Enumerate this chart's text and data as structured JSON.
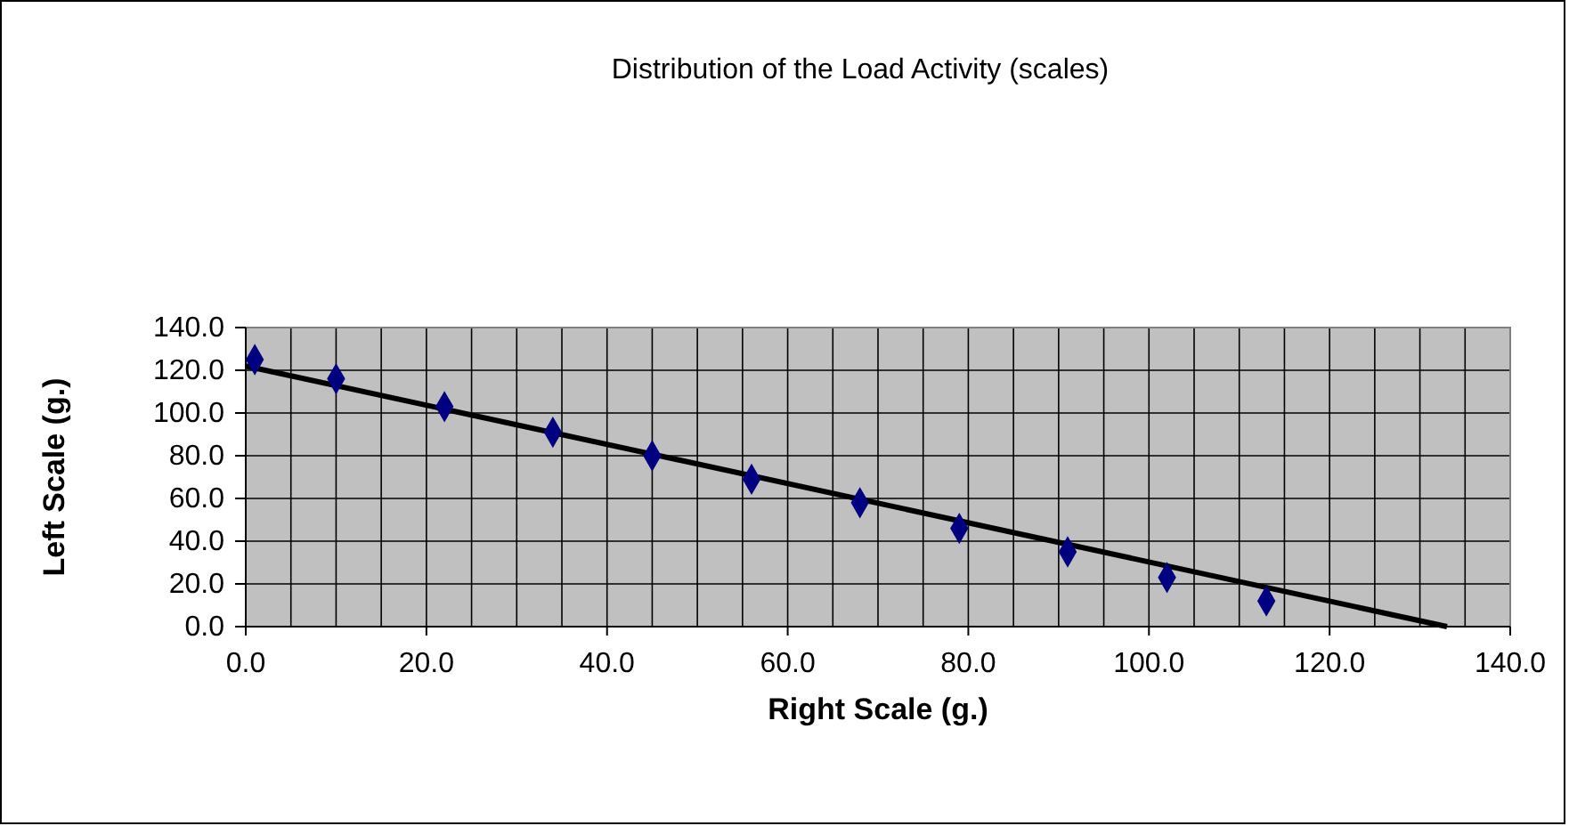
{
  "chart_data": {
    "type": "scatter",
    "title": "Distribution of the Load Activity (scales)",
    "xlabel": "Right Scale (g.)",
    "ylabel": "Left Scale (g.)",
    "series": [
      {
        "color": "#000080",
        "marker": "diamond",
        "x": [
          1,
          10,
          22,
          34,
          45,
          56,
          68,
          79,
          91,
          102,
          113
        ],
        "values": [
          125,
          116,
          103,
          91,
          80,
          69,
          58,
          46,
          35,
          23,
          12
        ]
      },
      {
        "type": "line",
        "color": "#000000",
        "marker": "none",
        "line_style": "solid",
        "x": [
          0,
          133
        ],
        "values": [
          122,
          0
        ]
      }
    ],
    "xlim": [
      0,
      140
    ],
    "ylim": [
      0,
      140
    ],
    "xticks": [
      {
        "value": 0,
        "label": "0.0"
      },
      {
        "value": 5,
        "label": null
      },
      {
        "value": 10,
        "label": null
      },
      {
        "value": 15,
        "label": null
      },
      {
        "value": 20,
        "label": "20.0"
      },
      {
        "value": 25,
        "label": null
      },
      {
        "value": 30,
        "label": null
      },
      {
        "value": 35,
        "label": null
      },
      {
        "value": 40,
        "label": "40.0"
      },
      {
        "value": 45,
        "label": null
      },
      {
        "value": 50,
        "label": null
      },
      {
        "value": 55,
        "label": null
      },
      {
        "value": 60,
        "label": "60.0"
      },
      {
        "value": 65,
        "label": null
      },
      {
        "value": 70,
        "label": null
      },
      {
        "value": 75,
        "label": null
      },
      {
        "value": 80,
        "label": "80.0"
      },
      {
        "value": 85,
        "label": null
      },
      {
        "value": 90,
        "label": null
      },
      {
        "value": 95,
        "label": null
      },
      {
        "value": 100,
        "label": "100.0"
      },
      {
        "value": 105,
        "label": null
      },
      {
        "value": 110,
        "label": null
      },
      {
        "value": 115,
        "label": null
      },
      {
        "value": 120,
        "label": "120.0"
      },
      {
        "value": 125,
        "label": null
      },
      {
        "value": 130,
        "label": null
      },
      {
        "value": 135,
        "label": null
      },
      {
        "value": 140,
        "label": "140.0"
      }
    ],
    "yticks": [
      {
        "value": 0,
        "label": "0.0"
      },
      {
        "value": 20,
        "label": "20.0"
      },
      {
        "value": 40,
        "label": "40.0"
      },
      {
        "value": 60,
        "label": "60.0"
      },
      {
        "value": 80,
        "label": "80.0"
      },
      {
        "value": 100,
        "label": "100.0"
      },
      {
        "value": 120,
        "label": "120.0"
      },
      {
        "value": 140,
        "label": "140.0"
      }
    ],
    "grid": true
  }
}
